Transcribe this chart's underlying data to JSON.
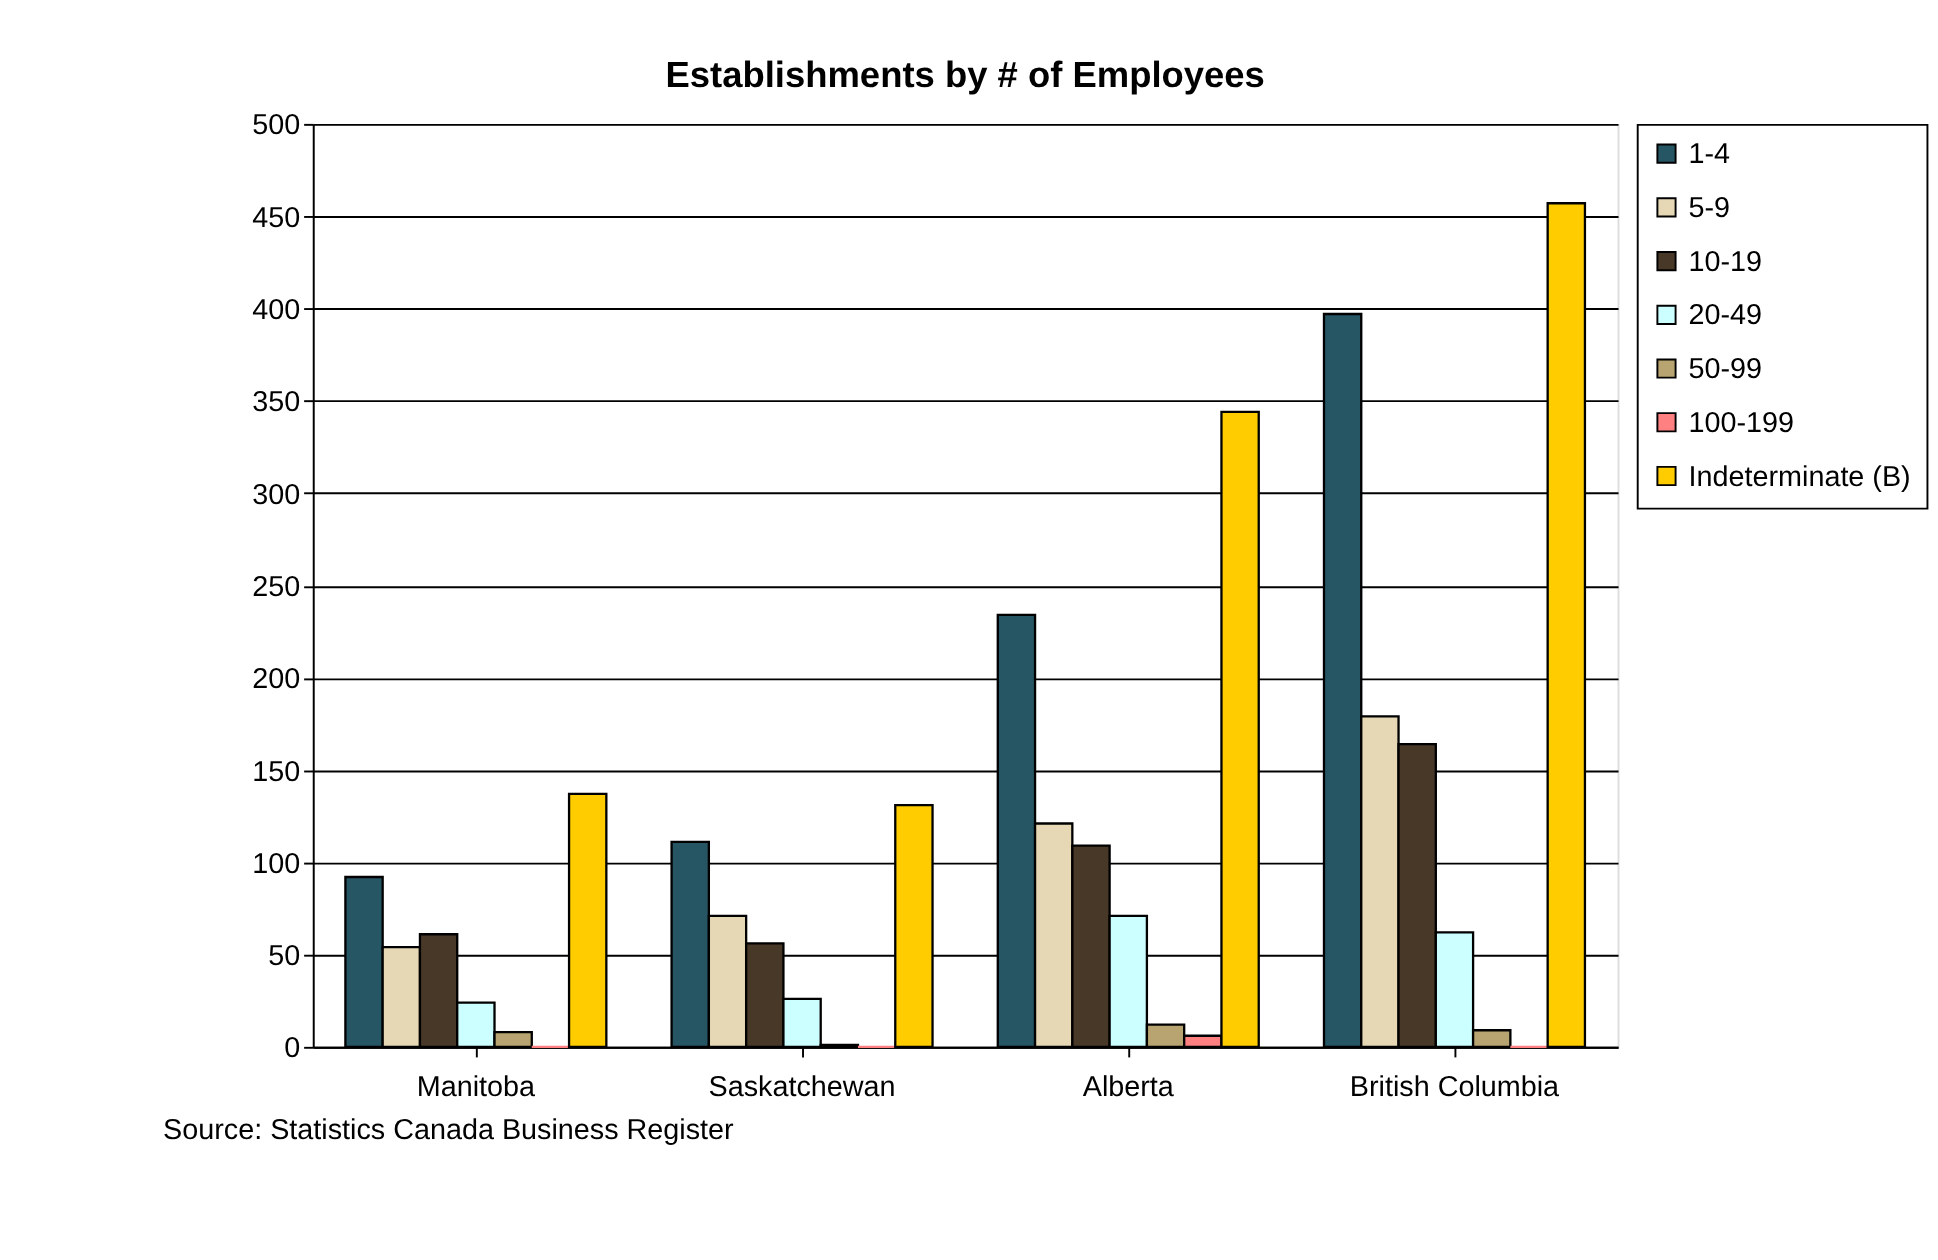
{
  "chart_data": {
    "type": "bar",
    "title": "Establishments by # of Employees",
    "categories": [
      "Manitoba",
      "Saskatchewan",
      "Alberta",
      "British Columbia"
    ],
    "series": [
      {
        "name": "1-4",
        "color": "#265564",
        "values": [
          92,
          111,
          234,
          397
        ]
      },
      {
        "name": "5-9",
        "color": "#e6d8b4",
        "values": [
          54,
          71,
          121,
          179
        ]
      },
      {
        "name": "10-19",
        "color": "#483828",
        "values": [
          61,
          56,
          109,
          164
        ]
      },
      {
        "name": "20-49",
        "color": "#ccffff",
        "values": [
          24,
          26,
          71,
          62
        ]
      },
      {
        "name": "50-99",
        "color": "#b8a470",
        "values": [
          8,
          1,
          12,
          9
        ]
      },
      {
        "name": "100-199",
        "color": "#ff8080",
        "values": [
          0,
          0,
          6,
          0
        ]
      },
      {
        "name": "Indeterminate (B)",
        "color": "#ffcc00",
        "values": [
          137,
          131,
          344,
          457
        ]
      }
    ],
    "ylim": [
      0,
      500
    ],
    "yticks": [
      0,
      50,
      100,
      150,
      200,
      250,
      300,
      350,
      400,
      450,
      500
    ],
    "grid": "y",
    "legend": "right",
    "annotations": [
      "Source: Statistics Canada Business Register"
    ]
  }
}
